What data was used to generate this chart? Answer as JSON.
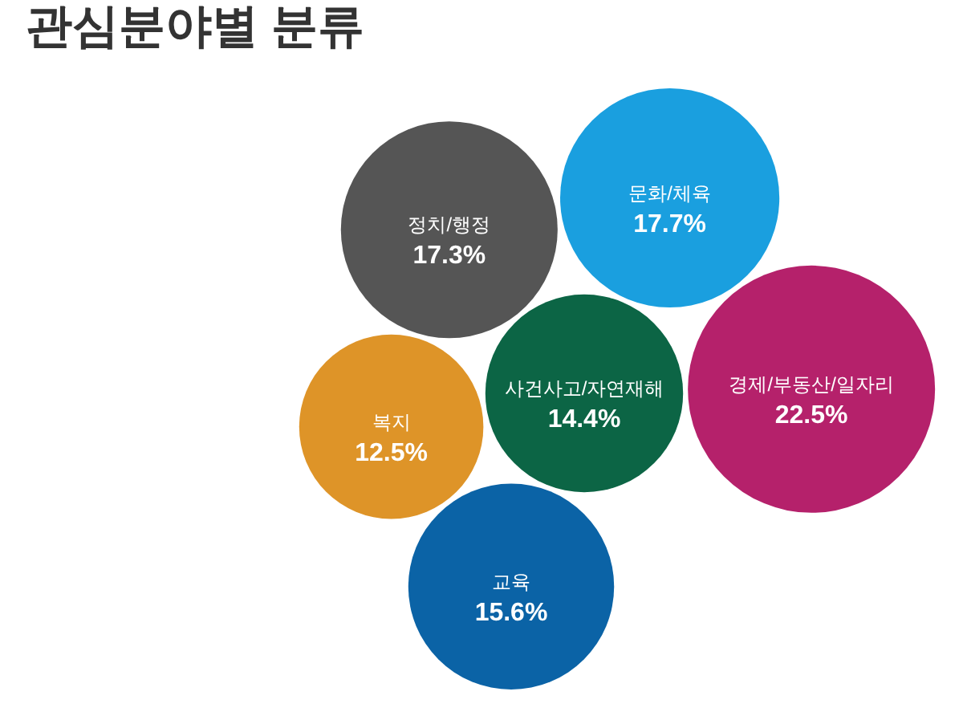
{
  "chart_data": {
    "type": "other",
    "title": "관심분야별 분류",
    "categories": [
      "사건사고/자연재해",
      "교육",
      "복지",
      "정치/행정",
      "문화/체육",
      "경제/부동산/일자리"
    ],
    "values": [
      14.4,
      15.6,
      12.5,
      17.3,
      17.7,
      22.5
    ],
    "value_labels": [
      "14.4%",
      "15.6%",
      "12.5%",
      "17.3%",
      "17.7%",
      "22.5%"
    ],
    "colors": [
      "#0c6545",
      "#0b63a6",
      "#de9428",
      "#555555",
      "#1a9fdf",
      "#b5216b"
    ]
  }
}
